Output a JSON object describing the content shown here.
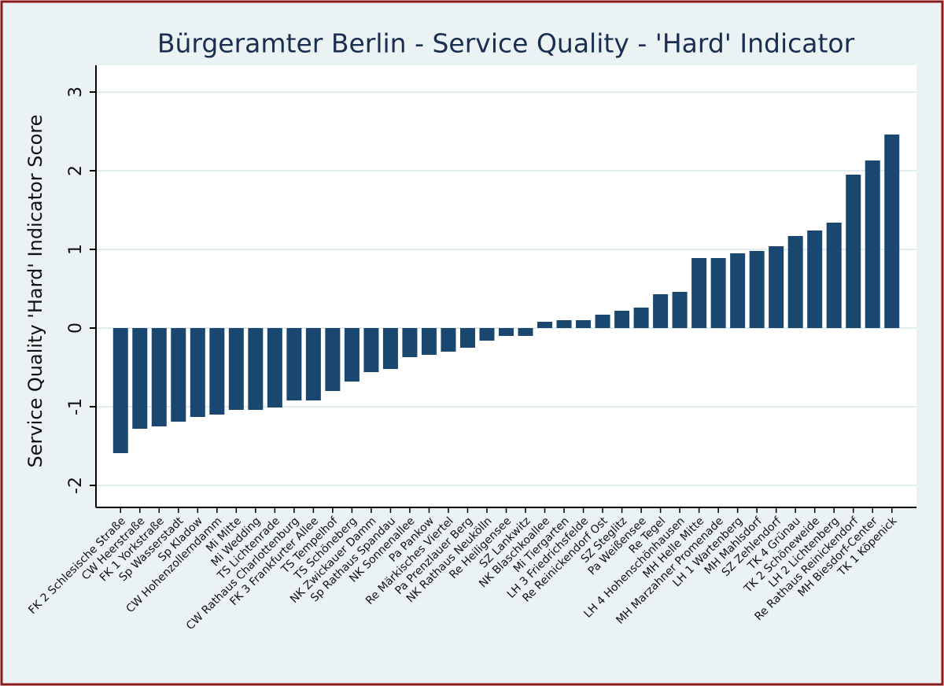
{
  "chart_data": {
    "type": "bar",
    "title": "Bürgeramter Berlin - Service Quality - 'Hard' Indicator",
    "y_label": "Service Quality 'Hard' Indicator Score",
    "categories": [
      "FK 2 Schlesische Straße",
      "CW Heerstraße",
      "FK 1 Yorkstraße",
      "Sp Wasserstadt",
      "Sp Kladow",
      "CW Hohenzollerndamm",
      "Mi Mitte",
      "Mi Wedding",
      "TS Lichtenrade",
      "CW Rathaus Charlottenburg",
      "FK 3 Frankfurter Allee",
      "TS Tempelhof",
      "TS Schöneberg",
      "NK Zwickauer Damm",
      "Sp Rathaus Spandau",
      "NK Sonnenallee",
      "Pa Pankow",
      "Re Märkisches Viertel",
      "Pa Prenzlauer Berg",
      "NK Rathaus Neukölln",
      "Re Heiligensee",
      "SZ Lankwitz",
      "NK Blaschkoallee",
      "Mi Tiergarten",
      "LH 3 Friedrichsfelde",
      "Re Reinickendorf Ost",
      "SZ Steglitz",
      "Pa Weißensee",
      "Re Tegel",
      "LH 4 Hohenschönhausen",
      "MH Helle Mitte",
      "MH Marzahner Promenade",
      "LH 1 Wartenberg",
      "MH Mahlsdorf",
      "SZ Zehlendorf",
      "TK 4 Grünau",
      "TK 2 Schöneweide",
      "LH 2 Lichtenberg",
      "Re Rathaus Reinickendorf",
      "MH Biesdorf-Center",
      "TK 1 Köpenick"
    ],
    "values": [
      -1.59,
      -1.28,
      -1.25,
      -1.19,
      -1.13,
      -1.1,
      -1.04,
      -1.04,
      -1.01,
      -0.92,
      -0.92,
      -0.8,
      -0.68,
      -0.56,
      -0.52,
      -0.37,
      -0.34,
      -0.3,
      -0.25,
      -0.16,
      -0.1,
      -0.1,
      0.08,
      0.1,
      0.1,
      0.17,
      0.22,
      0.26,
      0.43,
      0.46,
      0.89,
      0.89,
      0.95,
      0.98,
      1.04,
      1.17,
      1.24,
      1.34,
      1.95,
      2.13,
      2.46
    ],
    "color": "#1a476f",
    "ylim": [
      -2.28,
      3.34
    ],
    "yticks": [
      -2,
      -1,
      0,
      1,
      2,
      3
    ],
    "grid": true
  }
}
